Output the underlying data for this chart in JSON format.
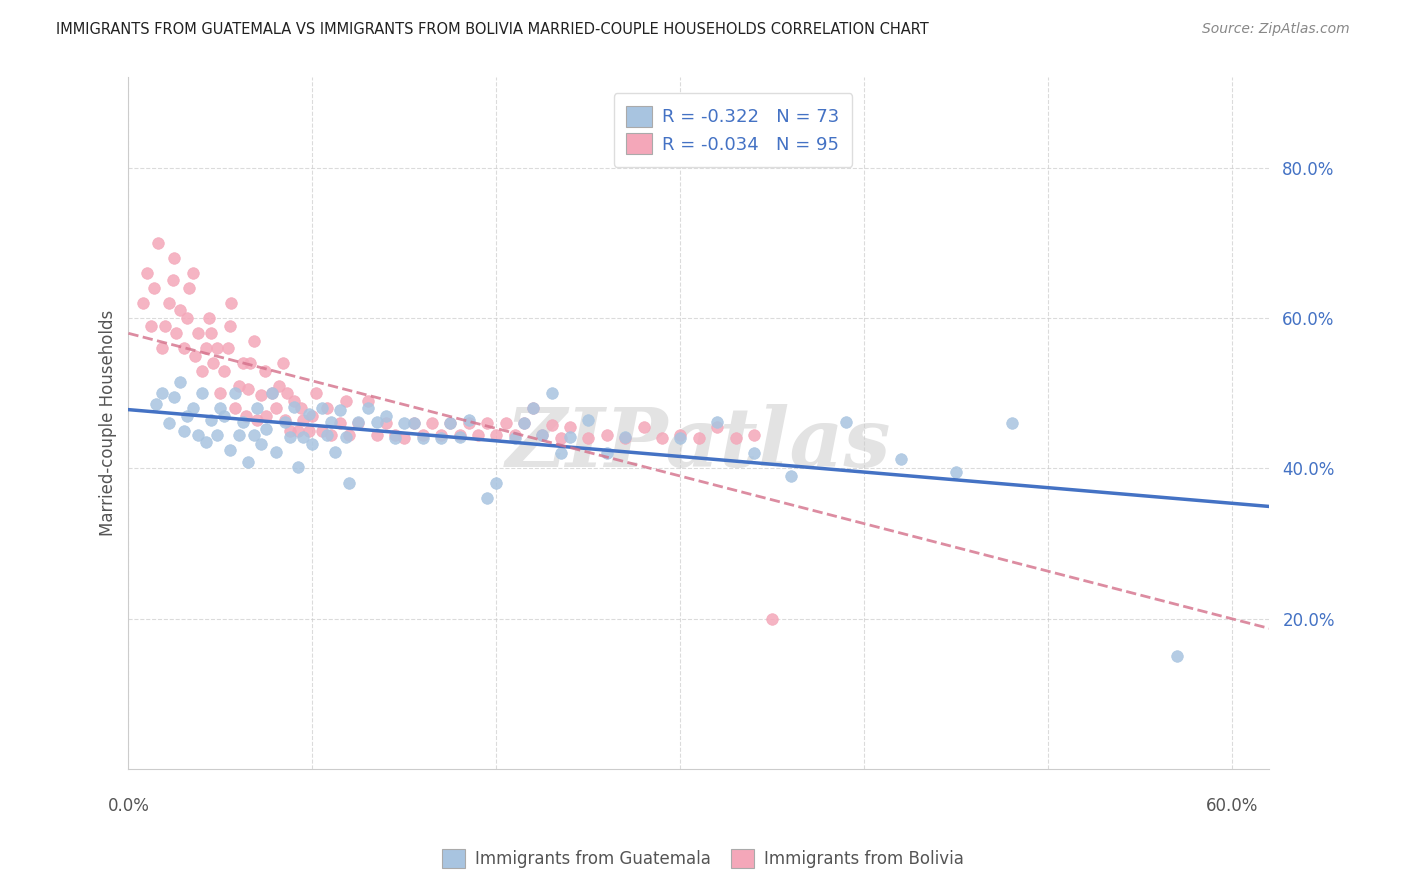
{
  "title": "IMMIGRANTS FROM GUATEMALA VS IMMIGRANTS FROM BOLIVIA MARRIED-COUPLE HOUSEHOLDS CORRELATION CHART",
  "source": "Source: ZipAtlas.com",
  "ylabel": "Married-couple Households",
  "xlim": [
    0.0,
    0.62
  ],
  "ylim": [
    0.0,
    0.92
  ],
  "yticks": [
    0.2,
    0.4,
    0.6,
    0.8
  ],
  "xticks": [
    0.0,
    0.1,
    0.2,
    0.3,
    0.4,
    0.5,
    0.6
  ],
  "xtick_labels": [
    "0.0%",
    "",
    "",
    "",
    "",
    "",
    "60.0%"
  ],
  "guatemala_color": "#a8c4e0",
  "guatemala_line_color": "#4472c4",
  "bolivia_color": "#f4a7b9",
  "bolivia_line_color": "#d4708a",
  "R_guatemala": -0.322,
  "N_guatemala": 73,
  "R_bolivia": -0.034,
  "N_bolivia": 95,
  "legend_text_color": "#4472c4",
  "background_color": "#ffffff",
  "watermark": "ZIPatlas",
  "guat_x": [
    0.015,
    0.018,
    0.022,
    0.025,
    0.028,
    0.03,
    0.032,
    0.035,
    0.038,
    0.04,
    0.042,
    0.045,
    0.048,
    0.05,
    0.052,
    0.055,
    0.058,
    0.06,
    0.062,
    0.065,
    0.068,
    0.07,
    0.072,
    0.075,
    0.078,
    0.08,
    0.085,
    0.088,
    0.09,
    0.092,
    0.095,
    0.098,
    0.1,
    0.105,
    0.108,
    0.11,
    0.112,
    0.115,
    0.118,
    0.12,
    0.125,
    0.13,
    0.135,
    0.14,
    0.145,
    0.15,
    0.155,
    0.16,
    0.17,
    0.175,
    0.18,
    0.185,
    0.195,
    0.2,
    0.21,
    0.215,
    0.22,
    0.225,
    0.23,
    0.235,
    0.24,
    0.25,
    0.26,
    0.27,
    0.3,
    0.32,
    0.34,
    0.36,
    0.39,
    0.42,
    0.45,
    0.48,
    0.57
  ],
  "guat_y": [
    0.485,
    0.5,
    0.46,
    0.495,
    0.515,
    0.45,
    0.47,
    0.48,
    0.445,
    0.5,
    0.435,
    0.465,
    0.445,
    0.48,
    0.47,
    0.425,
    0.5,
    0.445,
    0.462,
    0.408,
    0.445,
    0.48,
    0.432,
    0.452,
    0.5,
    0.422,
    0.462,
    0.442,
    0.482,
    0.402,
    0.442,
    0.472,
    0.432,
    0.48,
    0.445,
    0.462,
    0.422,
    0.478,
    0.442,
    0.38,
    0.462,
    0.48,
    0.462,
    0.47,
    0.44,
    0.46,
    0.46,
    0.44,
    0.44,
    0.46,
    0.442,
    0.465,
    0.36,
    0.38,
    0.44,
    0.46,
    0.48,
    0.445,
    0.5,
    0.42,
    0.442,
    0.464,
    0.42,
    0.442,
    0.44,
    0.462,
    0.42,
    0.39,
    0.462,
    0.412,
    0.395,
    0.46,
    0.15
  ],
  "boliv_x": [
    0.008,
    0.01,
    0.012,
    0.014,
    0.016,
    0.018,
    0.02,
    0.022,
    0.024,
    0.025,
    0.026,
    0.028,
    0.03,
    0.032,
    0.033,
    0.035,
    0.036,
    0.038,
    0.04,
    0.042,
    0.044,
    0.045,
    0.046,
    0.048,
    0.05,
    0.052,
    0.054,
    0.055,
    0.056,
    0.058,
    0.06,
    0.062,
    0.064,
    0.065,
    0.066,
    0.068,
    0.07,
    0.072,
    0.074,
    0.075,
    0.078,
    0.08,
    0.082,
    0.084,
    0.085,
    0.086,
    0.088,
    0.09,
    0.092,
    0.094,
    0.095,
    0.098,
    0.1,
    0.102,
    0.105,
    0.108,
    0.11,
    0.115,
    0.118,
    0.12,
    0.125,
    0.13,
    0.135,
    0.14,
    0.145,
    0.15,
    0.155,
    0.16,
    0.165,
    0.17,
    0.175,
    0.18,
    0.185,
    0.19,
    0.195,
    0.2,
    0.205,
    0.21,
    0.215,
    0.22,
    0.225,
    0.23,
    0.235,
    0.24,
    0.25,
    0.26,
    0.27,
    0.28,
    0.29,
    0.3,
    0.31,
    0.32,
    0.33,
    0.34,
    0.35
  ],
  "boliv_y": [
    0.62,
    0.66,
    0.59,
    0.64,
    0.7,
    0.56,
    0.59,
    0.62,
    0.65,
    0.68,
    0.58,
    0.61,
    0.56,
    0.6,
    0.64,
    0.66,
    0.55,
    0.58,
    0.53,
    0.56,
    0.6,
    0.58,
    0.54,
    0.56,
    0.5,
    0.53,
    0.56,
    0.59,
    0.62,
    0.48,
    0.51,
    0.54,
    0.47,
    0.505,
    0.54,
    0.57,
    0.465,
    0.498,
    0.53,
    0.47,
    0.5,
    0.48,
    0.51,
    0.54,
    0.465,
    0.5,
    0.45,
    0.49,
    0.45,
    0.48,
    0.465,
    0.45,
    0.47,
    0.5,
    0.45,
    0.48,
    0.445,
    0.46,
    0.49,
    0.445,
    0.46,
    0.49,
    0.445,
    0.46,
    0.445,
    0.44,
    0.46,
    0.445,
    0.46,
    0.445,
    0.46,
    0.445,
    0.46,
    0.445,
    0.46,
    0.445,
    0.46,
    0.445,
    0.46,
    0.48,
    0.445,
    0.458,
    0.44,
    0.455,
    0.44,
    0.445,
    0.44,
    0.455,
    0.44,
    0.445,
    0.44,
    0.455,
    0.44,
    0.445,
    0.2
  ]
}
